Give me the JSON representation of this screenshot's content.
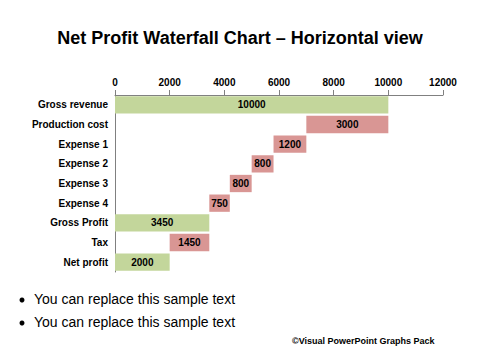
{
  "chart_data": {
    "type": "waterfall",
    "title": "Net Profit Waterfall Chart – Horizontal view",
    "orientation": "horizontal",
    "categories": [
      "Gross revenue",
      "Production cost",
      "Expense 1",
      "Expense 2",
      "Expense 3",
      "Expense 4",
      "Gross Profit",
      "Tax",
      "Net profit"
    ],
    "values": [
      10000,
      3000,
      1200,
      800,
      800,
      750,
      3450,
      1450,
      2000
    ],
    "colors": [
      "#c3d69b",
      "#d99694",
      "#d99694",
      "#d99694",
      "#d99694",
      "#d99694",
      "#c3d69b",
      "#d99694",
      "#c3d69b"
    ],
    "xlim": [
      0,
      12000
    ],
    "xticks": [
      0,
      2000,
      4000,
      6000,
      8000,
      10000,
      12000
    ],
    "grid": false,
    "data_labels": true,
    "bullets": [
      "You can replace this sample text",
      "You can replace this sample text"
    ],
    "footer": "©Visual PowerPoint Graphs Pack"
  }
}
